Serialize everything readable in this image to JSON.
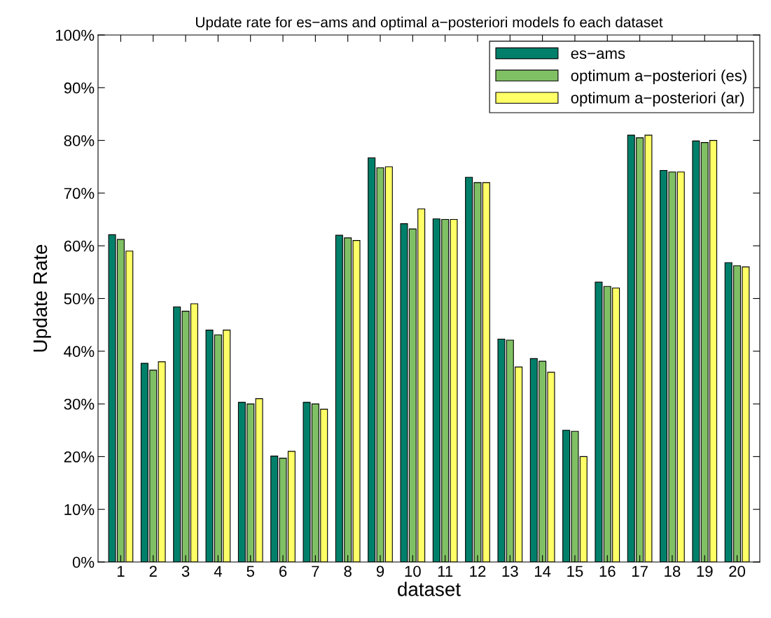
{
  "chart_data": {
    "type": "bar",
    "title": "Update rate for es−ams and optimal a−posteriori models fo each dataset",
    "xlabel": "dataset",
    "ylabel": "Update Rate",
    "categories": [
      "1",
      "2",
      "3",
      "4",
      "5",
      "6",
      "7",
      "8",
      "9",
      "10",
      "11",
      "12",
      "13",
      "14",
      "15",
      "16",
      "17",
      "18",
      "19",
      "20"
    ],
    "series": [
      {
        "name": "es−ams",
        "color": "#00806a",
        "values": [
          62.1,
          37.7,
          48.4,
          44,
          30.3,
          20.1,
          30.3,
          62,
          76.7,
          64.2,
          65.1,
          73,
          42.3,
          38.6,
          25,
          53.1,
          81,
          74.3,
          79.9,
          56.8
        ]
      },
      {
        "name": "optimum a−posteriori (es)",
        "color": "#80c065",
        "values": [
          61.2,
          36.4,
          47.6,
          43.1,
          30,
          19.7,
          30,
          61.5,
          74.8,
          63.2,
          65,
          72,
          42.1,
          38.1,
          24.8,
          52.3,
          80.5,
          74,
          79.6,
          56.2
        ]
      },
      {
        "name": "optimum a−posteriori (ar)",
        "color": "#ffff66",
        "values": [
          59,
          38,
          49,
          44,
          31,
          21,
          29,
          61,
          75,
          67,
          65,
          72,
          37,
          36,
          20,
          52,
          81,
          74,
          80,
          56
        ]
      }
    ],
    "ylim": [
      0,
      100
    ],
    "yticks": [
      {
        "value": 0,
        "label": "0%"
      },
      {
        "value": 10,
        "label": "10%"
      },
      {
        "value": 20,
        "label": "20%"
      },
      {
        "value": 30,
        "label": "30%"
      },
      {
        "value": 40,
        "label": "40%"
      },
      {
        "value": 50,
        "label": "50%"
      },
      {
        "value": 60,
        "label": "60%"
      },
      {
        "value": 70,
        "label": "70%"
      },
      {
        "value": 80,
        "label": "80%"
      },
      {
        "value": 90,
        "label": "90%"
      },
      {
        "value": 100,
        "label": "100%"
      }
    ],
    "grid": false,
    "legend": "top right"
  }
}
